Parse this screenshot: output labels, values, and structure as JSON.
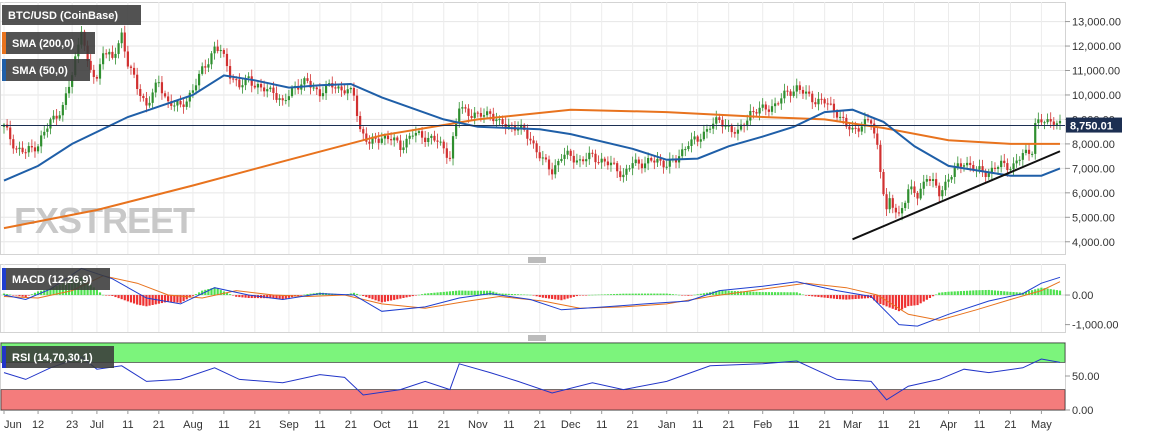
{
  "chart_data": {
    "type": "candlestick",
    "instrument_label": "BTC/USD (CoinBase)",
    "indicator_labels": {
      "sma200": "SMA (200,0)",
      "sma50": "SMA (50,0)",
      "macd": "MACD (12,26,9)",
      "rsi": "RSI (14,70,30,1)"
    },
    "current_price_label": "8,750.01",
    "current_price": 8750.01,
    "watermark": "FXSTREET",
    "price_axis": {
      "min": 3500,
      "max": 13800,
      "ticks": [
        4000,
        5000,
        6000,
        7000,
        8000,
        9000,
        10000,
        11000,
        12000,
        13000
      ],
      "tick_labels": [
        "4,000.00",
        "5,000.00",
        "6,000.00",
        "7,000.00",
        "8,000.00",
        "9,000.00",
        "10,000.00",
        "11,000.00",
        "12,000.00",
        "13,000.00"
      ]
    },
    "macd_axis": {
      "min": -1250,
      "max": 1050,
      "ticks": [
        0,
        -1000
      ],
      "tick_labels": [
        "0.00",
        "-1,000.00"
      ]
    },
    "rsi_axis": {
      "min": 0,
      "max": 100,
      "ticks": [
        50,
        0
      ],
      "tick_labels": [
        "50.00",
        "0.00"
      ],
      "overbought": 70,
      "oversold": 30
    },
    "x_axis": {
      "start": "2019-06-01",
      "end": "2020-05-07",
      "ticks": [
        {
          "date": "2019-06-01",
          "label": "Jun"
        },
        {
          "date": "2019-06-12",
          "label": "12"
        },
        {
          "date": "2019-06-23",
          "label": "23"
        },
        {
          "date": "2019-07-01",
          "label": "Jul"
        },
        {
          "date": "2019-07-11",
          "label": "11"
        },
        {
          "date": "2019-07-21",
          "label": "21"
        },
        {
          "date": "2019-08-01",
          "label": "Aug"
        },
        {
          "date": "2019-08-11",
          "label": "11"
        },
        {
          "date": "2019-08-21",
          "label": "21"
        },
        {
          "date": "2019-09-01",
          "label": "Sep"
        },
        {
          "date": "2019-09-11",
          "label": "11"
        },
        {
          "date": "2019-09-21",
          "label": "21"
        },
        {
          "date": "2019-10-01",
          "label": "Oct"
        },
        {
          "date": "2019-10-11",
          "label": "11"
        },
        {
          "date": "2019-10-21",
          "label": "21"
        },
        {
          "date": "2019-11-01",
          "label": "Nov"
        },
        {
          "date": "2019-11-11",
          "label": "11"
        },
        {
          "date": "2019-11-21",
          "label": "21"
        },
        {
          "date": "2019-12-01",
          "label": "Dec"
        },
        {
          "date": "2019-12-11",
          "label": "11"
        },
        {
          "date": "2019-12-21",
          "label": "21"
        },
        {
          "date": "2020-01-01",
          "label": "Jan"
        },
        {
          "date": "2020-01-11",
          "label": "11"
        },
        {
          "date": "2020-01-21",
          "label": "21"
        },
        {
          "date": "2020-02-01",
          "label": "Feb"
        },
        {
          "date": "2020-02-11",
          "label": "11"
        },
        {
          "date": "2020-02-21",
          "label": "21"
        },
        {
          "date": "2020-03-01",
          "label": "Mar"
        },
        {
          "date": "2020-03-11",
          "label": "11"
        },
        {
          "date": "2020-03-21",
          "label": "21"
        },
        {
          "date": "2020-04-01",
          "label": "Apr"
        },
        {
          "date": "2020-04-11",
          "label": "11"
        },
        {
          "date": "2020-04-21",
          "label": "21"
        },
        {
          "date": "2020-05-01",
          "label": "May"
        }
      ]
    },
    "price_path": [
      [
        "2019-06-01",
        8700
      ],
      [
        "2019-06-05",
        7800
      ],
      [
        "2019-06-08",
        7650
      ],
      [
        "2019-06-12",
        8000
      ],
      [
        "2019-06-16",
        8900
      ],
      [
        "2019-06-20",
        9500
      ],
      [
        "2019-06-23",
        10800
      ],
      [
        "2019-06-26",
        12800
      ],
      [
        "2019-06-28",
        11200
      ],
      [
        "2019-07-01",
        10600
      ],
      [
        "2019-07-03",
        11900
      ],
      [
        "2019-07-06",
        11400
      ],
      [
        "2019-07-09",
        12500
      ],
      [
        "2019-07-11",
        11300
      ],
      [
        "2019-07-14",
        10300
      ],
      [
        "2019-07-17",
        9600
      ],
      [
        "2019-07-21",
        10500
      ],
      [
        "2019-07-24",
        9700
      ],
      [
        "2019-07-28",
        9500
      ],
      [
        "2019-08-01",
        10200
      ],
      [
        "2019-08-04",
        11000
      ],
      [
        "2019-08-08",
        11900
      ],
      [
        "2019-08-10",
        11800
      ],
      [
        "2019-08-13",
        10900
      ],
      [
        "2019-08-16",
        10300
      ],
      [
        "2019-08-19",
        10700
      ],
      [
        "2019-08-23",
        10200
      ],
      [
        "2019-08-27",
        10200
      ],
      [
        "2019-08-30",
        9600
      ],
      [
        "2019-09-03",
        10400
      ],
      [
        "2019-09-07",
        10500
      ],
      [
        "2019-09-11",
        10100
      ],
      [
        "2019-09-15",
        10400
      ],
      [
        "2019-09-19",
        10200
      ],
      [
        "2019-09-22",
        10000
      ],
      [
        "2019-09-24",
        8600
      ],
      [
        "2019-09-27",
        8000
      ],
      [
        "2019-10-01",
        8300
      ],
      [
        "2019-10-04",
        8200
      ],
      [
        "2019-10-07",
        7900
      ],
      [
        "2019-10-11",
        8400
      ],
      [
        "2019-10-15",
        8300
      ],
      [
        "2019-10-19",
        8100
      ],
      [
        "2019-10-23",
        7500
      ],
      [
        "2019-10-26",
        9500
      ],
      [
        "2019-10-29",
        9300
      ],
      [
        "2019-11-01",
        9100
      ],
      [
        "2019-11-05",
        9300
      ],
      [
        "2019-11-08",
        8800
      ],
      [
        "2019-11-11",
        8750
      ],
      [
        "2019-11-14",
        8700
      ],
      [
        "2019-11-18",
        8200
      ],
      [
        "2019-11-22",
        7300
      ],
      [
        "2019-11-25",
        6900
      ],
      [
        "2019-11-28",
        7500
      ],
      [
        "2019-12-01",
        7500
      ],
      [
        "2019-12-04",
        7300
      ],
      [
        "2019-12-08",
        7500
      ],
      [
        "2019-12-12",
        7250
      ],
      [
        "2019-12-16",
        7000
      ],
      [
        "2019-12-18",
        6700
      ],
      [
        "2019-12-21",
        7200
      ],
      [
        "2019-12-25",
        7250
      ],
      [
        "2019-12-29",
        7300
      ],
      [
        "2020-01-01",
        7200
      ],
      [
        "2020-01-04",
        7300
      ],
      [
        "2020-01-08",
        8100
      ],
      [
        "2020-01-11",
        8100
      ],
      [
        "2020-01-15",
        8800
      ],
      [
        "2020-01-18",
        8900
      ],
      [
        "2020-01-21",
        8700
      ],
      [
        "2020-01-24",
        8400
      ],
      [
        "2020-01-28",
        9300
      ],
      [
        "2020-02-01",
        9400
      ],
      [
        "2020-02-05",
        9600
      ],
      [
        "2020-02-09",
        10100
      ],
      [
        "2020-02-12",
        10300
      ],
      [
        "2020-02-15",
        10000
      ],
      [
        "2020-02-18",
        9800
      ],
      [
        "2020-02-21",
        9700
      ],
      [
        "2020-02-25",
        9300
      ],
      [
        "2020-02-28",
        8700
      ],
      [
        "2020-03-01",
        8550
      ],
      [
        "2020-03-04",
        8800
      ],
      [
        "2020-03-07",
        8900
      ],
      [
        "2020-03-09",
        7900
      ],
      [
        "2020-03-12",
        5200
      ],
      [
        "2020-03-13",
        5600
      ],
      [
        "2020-03-16",
        5100
      ],
      [
        "2020-03-19",
        6100
      ],
      [
        "2020-03-22",
        5900
      ],
      [
        "2020-03-25",
        6700
      ],
      [
        "2020-03-29",
        6000
      ],
      [
        "2020-04-01",
        6600
      ],
      [
        "2020-04-06",
        7300
      ],
      [
        "2020-04-10",
        6900
      ],
      [
        "2020-04-14",
        6850
      ],
      [
        "2020-04-18",
        7150
      ],
      [
        "2020-04-22",
        7100
      ],
      [
        "2020-04-25",
        7550
      ],
      [
        "2020-04-28",
        7800
      ],
      [
        "2020-04-29",
        8800
      ],
      [
        "2020-05-01",
        8900
      ],
      [
        "2020-05-03",
        8900
      ],
      [
        "2020-05-05",
        9000
      ],
      [
        "2020-05-07",
        8750
      ]
    ],
    "sma200": [
      [
        "2019-06-01",
        4560
      ],
      [
        "2019-07-01",
        5300
      ],
      [
        "2019-08-01",
        6300
      ],
      [
        "2019-09-01",
        7350
      ],
      [
        "2019-10-01",
        8350
      ],
      [
        "2019-11-01",
        9000
      ],
      [
        "2019-12-01",
        9400
      ],
      [
        "2020-01-01",
        9300
      ],
      [
        "2020-02-01",
        9100
      ],
      [
        "2020-02-21",
        9000
      ],
      [
        "2020-03-11",
        8650
      ],
      [
        "2020-04-01",
        8150
      ],
      [
        "2020-04-21",
        8000
      ],
      [
        "2020-05-07",
        8000
      ]
    ],
    "sma50": [
      [
        "2019-06-01",
        6500
      ],
      [
        "2019-06-12",
        7100
      ],
      [
        "2019-06-23",
        8000
      ],
      [
        "2019-07-11",
        9100
      ],
      [
        "2019-08-01",
        10000
      ],
      [
        "2019-08-11",
        10800
      ],
      [
        "2019-08-21",
        10600
      ],
      [
        "2019-09-01",
        10300
      ],
      [
        "2019-09-11",
        10400
      ],
      [
        "2019-09-21",
        10450
      ],
      [
        "2019-10-01",
        9900
      ],
      [
        "2019-10-21",
        9000
      ],
      [
        "2019-11-01",
        8700
      ],
      [
        "2019-11-21",
        8600
      ],
      [
        "2019-12-01",
        8400
      ],
      [
        "2019-12-21",
        7800
      ],
      [
        "2020-01-01",
        7350
      ],
      [
        "2020-01-11",
        7400
      ],
      [
        "2020-01-21",
        7900
      ],
      [
        "2020-02-01",
        8300
      ],
      [
        "2020-02-11",
        8700
      ],
      [
        "2020-02-21",
        9300
      ],
      [
        "2020-03-01",
        9400
      ],
      [
        "2020-03-11",
        8900
      ],
      [
        "2020-03-21",
        7900
      ],
      [
        "2020-04-01",
        7100
      ],
      [
        "2020-04-21",
        6700
      ],
      [
        "2020-05-01",
        6700
      ],
      [
        "2020-05-07",
        7000
      ]
    ],
    "trendline": [
      [
        "2020-03-01",
        4100
      ],
      [
        "2020-05-07",
        7700
      ]
    ],
    "macd_line": [
      [
        "2019-06-01",
        0
      ],
      [
        "2019-06-08",
        -150
      ],
      [
        "2019-06-16",
        200
      ],
      [
        "2019-06-26",
        900
      ],
      [
        "2019-07-06",
        550
      ],
      [
        "2019-07-17",
        -100
      ],
      [
        "2019-07-28",
        -300
      ],
      [
        "2019-08-08",
        250
      ],
      [
        "2019-08-19",
        0
      ],
      [
        "2019-08-30",
        -150
      ],
      [
        "2019-09-11",
        50
      ],
      [
        "2019-09-22",
        0
      ],
      [
        "2019-10-01",
        -550
      ],
      [
        "2019-10-15",
        -400
      ],
      [
        "2019-10-26",
        -100
      ],
      [
        "2019-11-05",
        50
      ],
      [
        "2019-11-18",
        -150
      ],
      [
        "2019-11-28",
        -500
      ],
      [
        "2019-12-12",
        -400
      ],
      [
        "2019-12-25",
        -300
      ],
      [
        "2020-01-08",
        -200
      ],
      [
        "2020-01-18",
        150
      ],
      [
        "2020-02-01",
        300
      ],
      [
        "2020-02-12",
        450
      ],
      [
        "2020-02-25",
        150
      ],
      [
        "2020-03-07",
        -50
      ],
      [
        "2020-03-16",
        -1000
      ],
      [
        "2020-03-22",
        -1050
      ],
      [
        "2020-04-01",
        -650
      ],
      [
        "2020-04-14",
        -200
      ],
      [
        "2020-04-25",
        50
      ],
      [
        "2020-05-01",
        400
      ],
      [
        "2020-05-07",
        600
      ]
    ],
    "macd_signal": [
      [
        "2019-06-01",
        -50
      ],
      [
        "2019-06-12",
        -100
      ],
      [
        "2019-06-23",
        150
      ],
      [
        "2019-07-03",
        650
      ],
      [
        "2019-07-14",
        400
      ],
      [
        "2019-07-24",
        0
      ],
      [
        "2019-08-04",
        -100
      ],
      [
        "2019-08-15",
        150
      ],
      [
        "2019-08-27",
        0
      ],
      [
        "2019-09-07",
        -50
      ],
      [
        "2019-09-19",
        0
      ],
      [
        "2019-10-01",
        -300
      ],
      [
        "2019-10-15",
        -450
      ],
      [
        "2019-10-29",
        -200
      ],
      [
        "2019-11-08",
        -50
      ],
      [
        "2019-11-22",
        -200
      ],
      [
        "2019-12-04",
        -450
      ],
      [
        "2019-12-18",
        -400
      ],
      [
        "2020-01-01",
        -300
      ],
      [
        "2020-01-15",
        -50
      ],
      [
        "2020-02-01",
        200
      ],
      [
        "2020-02-15",
        400
      ],
      [
        "2020-02-28",
        250
      ],
      [
        "2020-03-09",
        0
      ],
      [
        "2020-03-19",
        -650
      ],
      [
        "2020-03-29",
        -850
      ],
      [
        "2020-04-10",
        -500
      ],
      [
        "2020-04-21",
        -150
      ],
      [
        "2020-05-01",
        150
      ],
      [
        "2020-05-07",
        450
      ]
    ],
    "rsi_line": [
      [
        "2019-06-01",
        55
      ],
      [
        "2019-06-08",
        45
      ],
      [
        "2019-06-16",
        62
      ],
      [
        "2019-06-26",
        78
      ],
      [
        "2019-07-01",
        60
      ],
      [
        "2019-07-09",
        65
      ],
      [
        "2019-07-17",
        42
      ],
      [
        "2019-07-28",
        45
      ],
      [
        "2019-08-08",
        62
      ],
      [
        "2019-08-16",
        45
      ],
      [
        "2019-08-30",
        40
      ],
      [
        "2019-09-11",
        52
      ],
      [
        "2019-09-19",
        48
      ],
      [
        "2019-09-25",
        22
      ],
      [
        "2019-10-07",
        30
      ],
      [
        "2019-10-15",
        42
      ],
      [
        "2019-10-23",
        30
      ],
      [
        "2019-10-26",
        68
      ],
      [
        "2019-11-05",
        55
      ],
      [
        "2019-11-14",
        42
      ],
      [
        "2019-11-25",
        25
      ],
      [
        "2019-12-08",
        40
      ],
      [
        "2019-12-18",
        30
      ],
      [
        "2020-01-01",
        42
      ],
      [
        "2020-01-15",
        65
      ],
      [
        "2020-02-01",
        68
      ],
      [
        "2020-02-12",
        72
      ],
      [
        "2020-02-25",
        45
      ],
      [
        "2020-03-07",
        42
      ],
      [
        "2020-03-12",
        15
      ],
      [
        "2020-03-19",
        35
      ],
      [
        "2020-03-29",
        45
      ],
      [
        "2020-04-06",
        60
      ],
      [
        "2020-04-14",
        55
      ],
      [
        "2020-04-25",
        62
      ],
      [
        "2020-05-01",
        75
      ],
      [
        "2020-05-07",
        70
      ]
    ]
  }
}
